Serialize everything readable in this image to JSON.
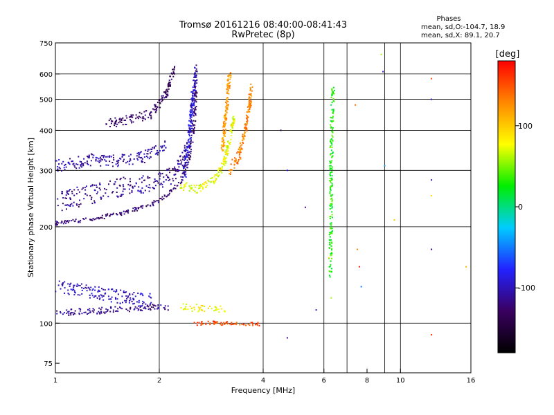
{
  "chart_data": {
    "type": "scatter",
    "title": "Tromsø 20161216 08:40:00-08:41:43",
    "subtitle": "RwPretec (8p)",
    "xlabel": "Frequency [MHz]",
    "ylabel": "Stationary phase Virtual Height [km]",
    "x_scale": "log",
    "y_scale": "log",
    "xlim": [
      1,
      16
    ],
    "ylim": [
      70,
      750
    ],
    "x_ticks": [
      1,
      2,
      4,
      6,
      8,
      10,
      16
    ],
    "x_tick_labels": [
      "1",
      "2",
      "4",
      "6",
      "8",
      "10",
      "16"
    ],
    "y_ticks": [
      75,
      100,
      200,
      300,
      400,
      500,
      600,
      750
    ],
    "y_tick_labels": [
      "75",
      "100",
      "200",
      "300",
      "400",
      "500",
      "600",
      "750"
    ],
    "grid": true,
    "grid_x": [
      2,
      4,
      6,
      7,
      9,
      10
    ],
    "grid_y": [
      100,
      200,
      300,
      400,
      500,
      600
    ],
    "stats": {
      "title": "Phases",
      "line1": "mean, sd,O:-104.7, 18.9",
      "line2": "mean, sd,X:  89.1, 20.7"
    },
    "colorbar": {
      "label": "[deg]",
      "range": [
        -180,
        180
      ],
      "ticks": [
        100,
        0,
        -100
      ],
      "tick_labels": [
        "100",
        "0",
        "-100"
      ],
      "colors": [
        "#000000",
        "#3a0060",
        "#2222ff",
        "#00ccff",
        "#00ee00",
        "#ffff00",
        "#ff8800",
        "#ff0000"
      ]
    },
    "traces": [
      {
        "name": "o-mode E low trace",
        "kind": "curve",
        "points": [
          [
            1.0,
            108
          ],
          [
            1.3,
            109
          ],
          [
            1.6,
            111
          ],
          [
            1.9,
            112
          ],
          [
            2.15,
            112
          ]
        ],
        "spread": 2.5,
        "phase": -115
      },
      {
        "name": "o-mode E upper cloud",
        "kind": "curve",
        "points": [
          [
            1.0,
            130
          ],
          [
            1.3,
            125
          ],
          [
            1.6,
            120
          ],
          [
            1.9,
            118
          ]
        ],
        "spread": 6,
        "phase": -100
      },
      {
        "name": "o-mode F lower edge",
        "kind": "curve",
        "points": [
          [
            1.0,
            205
          ],
          [
            1.3,
            212
          ],
          [
            1.6,
            222
          ],
          [
            1.9,
            235
          ],
          [
            2.1,
            250
          ],
          [
            2.3,
            275
          ],
          [
            2.45,
            330
          ],
          [
            2.52,
            420
          ],
          [
            2.55,
            520
          ],
          [
            2.55,
            640
          ]
        ],
        "spread": 3,
        "phase": -125
      },
      {
        "name": "o-mode F cloud",
        "kind": "curve",
        "points": [
          [
            1.0,
            240
          ],
          [
            1.3,
            255
          ],
          [
            1.6,
            268
          ],
          [
            1.9,
            275
          ],
          [
            2.2,
            290
          ],
          [
            2.4,
            350
          ]
        ],
        "spread": 18,
        "phase": -115
      },
      {
        "name": "o-mode F second layer",
        "kind": "curve",
        "points": [
          [
            1.0,
            310
          ],
          [
            1.3,
            325
          ],
          [
            1.5,
            320
          ],
          [
            1.8,
            330
          ],
          [
            2.1,
            360
          ]
        ],
        "spread": 14,
        "phase": -105
      },
      {
        "name": "o-mode spread F",
        "kind": "curve",
        "points": [
          [
            1.4,
            420
          ],
          [
            1.6,
            430
          ],
          [
            1.9,
            450
          ],
          [
            2.1,
            520
          ],
          [
            2.2,
            620
          ]
        ],
        "spread": 15,
        "phase": -130
      },
      {
        "name": "o-mode near-vertical trace",
        "kind": "curve",
        "points": [
          [
            2.35,
            300
          ],
          [
            2.45,
            380
          ],
          [
            2.5,
            500
          ],
          [
            2.55,
            600
          ]
        ],
        "spread": 30,
        "phase": -95
      },
      {
        "name": "x-mode E trace",
        "kind": "curve",
        "points": [
          [
            2.3,
            112
          ],
          [
            2.5,
            112
          ],
          [
            2.8,
            110
          ],
          [
            3.1,
            111
          ]
        ],
        "spread": 3,
        "phase": 80
      },
      {
        "name": "x-mode F trace",
        "kind": "curve",
        "points": [
          [
            2.3,
            270
          ],
          [
            2.6,
            262
          ],
          [
            2.9,
            280
          ],
          [
            3.1,
            320
          ],
          [
            3.2,
            380
          ],
          [
            3.3,
            440
          ]
        ],
        "spread": 8,
        "phase": 75
      },
      {
        "name": "x-mode second trace",
        "kind": "curve",
        "points": [
          [
            3.2,
            300
          ],
          [
            3.4,
            330
          ],
          [
            3.55,
            400
          ],
          [
            3.65,
            480
          ],
          [
            3.7,
            550
          ]
        ],
        "spread": 12,
        "phase": 130
      },
      {
        "name": "x-mode steep trace",
        "kind": "curve",
        "points": [
          [
            3.05,
            340
          ],
          [
            3.1,
            420
          ],
          [
            3.15,
            500
          ],
          [
            3.2,
            600
          ]
        ],
        "spread": 10,
        "phase": 120
      },
      {
        "name": "bottom dots",
        "kind": "curve",
        "points": [
          [
            2.5,
            100
          ],
          [
            3.0,
            100
          ],
          [
            3.5,
            100
          ],
          [
            3.9,
            99
          ]
        ],
        "spread": 1.5,
        "phase": 150
      },
      {
        "name": "column 6.3 MHz",
        "kind": "curve",
        "points": [
          [
            6.25,
            140
          ],
          [
            6.3,
            200
          ],
          [
            6.3,
            300
          ],
          [
            6.35,
            480
          ],
          [
            6.4,
            560
          ]
        ],
        "spread": 2,
        "phase": 30
      },
      {
        "name": "scattered",
        "kind": "points",
        "points": [
          [
            4.5,
            400,
            -140
          ],
          [
            4.7,
            300,
            -90
          ],
          [
            5.3,
            230,
            -120
          ],
          [
            5.7,
            110,
            -100
          ],
          [
            7.4,
            480,
            140
          ],
          [
            7.5,
            170,
            130
          ],
          [
            7.7,
            130,
            -50
          ],
          [
            8.8,
            690,
            60
          ],
          [
            8.9,
            610,
            -90
          ],
          [
            9.0,
            310,
            -40
          ],
          [
            9.6,
            210,
            100
          ],
          [
            12.3,
            580,
            150
          ],
          [
            12.3,
            500,
            -100
          ],
          [
            12.3,
            280,
            -110
          ],
          [
            12.3,
            250,
            90
          ],
          [
            12.3,
            170,
            -120
          ],
          [
            12.3,
            92,
            160
          ],
          [
            15.5,
            150,
            110
          ],
          [
            4.7,
            90,
            -120
          ],
          [
            6.2,
            160,
            90
          ],
          [
            6.3,
            120,
            60
          ],
          [
            7.6,
            150,
            170
          ]
        ],
        "phase": 0
      }
    ]
  }
}
